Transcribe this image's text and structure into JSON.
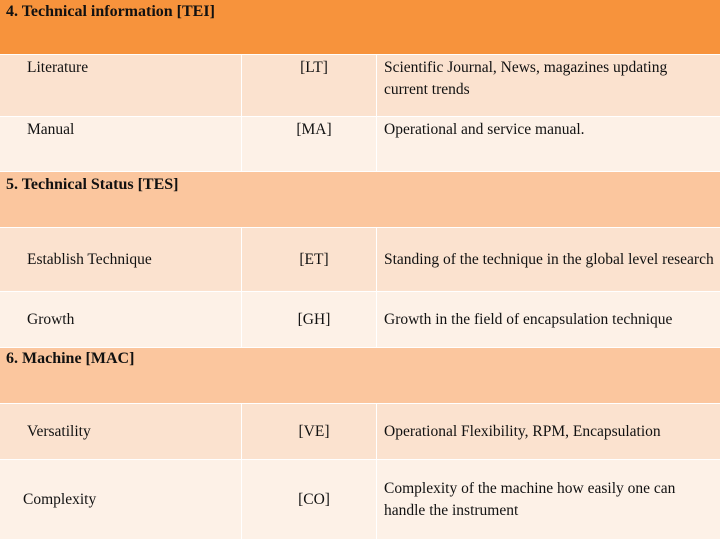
{
  "colors": {
    "section_bg": "#fbc69e",
    "section_header_top": "#f7933c",
    "row_odd": "#fbe2cf",
    "row_even": "#fdf1e7"
  },
  "sections": [
    {
      "title": "4. Technical information [TEI]",
      "rows": [
        {
          "item": "Literature",
          "code": "[LT]",
          "desc": "Scientific Journal, News, magazines updating current trends"
        },
        {
          "item": "Manual",
          "code": "[MA]",
          "desc": "Operational and service manual."
        }
      ]
    },
    {
      "title": "5. Technical Status  [TES]",
      "rows": [
        {
          "item": "Establish Technique",
          "code": "[ET]",
          "desc": "Standing of the technique in the global level research"
        },
        {
          "item": "Growth",
          "code": "[GH]",
          "desc": "Growth in the field of encapsulation technique"
        }
      ]
    },
    {
      "title": "6. Machine  [MAC]",
      "rows": [
        {
          "item": "Versatility",
          "code": "[VE]",
          "desc": "Operational Flexibility, RPM, Encapsulation"
        },
        {
          "item": "Complexity",
          "code": "[CO]",
          "desc": "Complexity of the machine how easily one can handle the instrument"
        }
      ]
    }
  ]
}
